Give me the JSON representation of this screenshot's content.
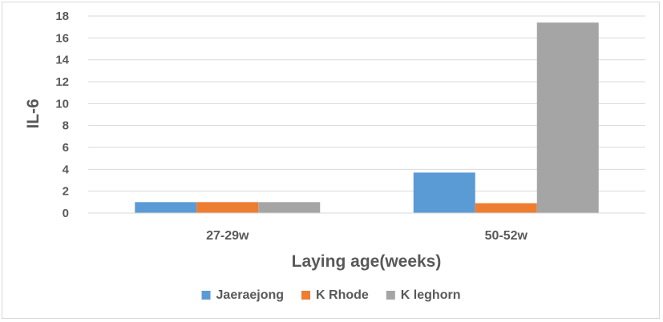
{
  "chart_data": {
    "type": "bar",
    "title": "",
    "xlabel": "Laying age(weeks)",
    "ylabel": "IL-6",
    "categories": [
      "27-29w",
      "50-52w"
    ],
    "series": [
      {
        "name": "Jaeraejong",
        "values": [
          1.0,
          3.7
        ],
        "color": "#5b9bd5"
      },
      {
        "name": "K Rhode",
        "values": [
          1.0,
          0.9
        ],
        "color": "#ed7d31"
      },
      {
        "name": "K leghorn",
        "values": [
          1.0,
          17.4
        ],
        "color": "#a5a5a5"
      }
    ],
    "ylim": [
      0,
      18
    ],
    "yticks": [
      0,
      2,
      4,
      6,
      8,
      10,
      12,
      14,
      16,
      18
    ],
    "grid": true,
    "legend_position": "bottom"
  }
}
